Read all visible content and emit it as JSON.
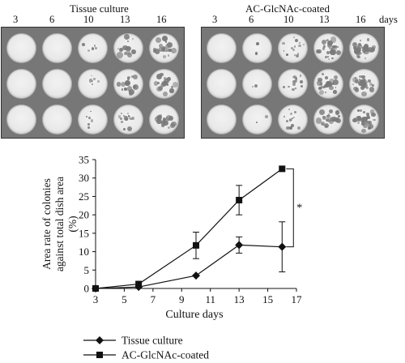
{
  "panels": [
    {
      "title": "Tissue culture",
      "days": [
        "3",
        "6",
        "10",
        "13",
        "16"
      ]
    },
    {
      "title": "AC-GlcNAc-coated",
      "days": [
        "3",
        "6",
        "10",
        "13",
        "16"
      ]
    }
  ],
  "days_label": "days",
  "chart_data": {
    "type": "line",
    "xlabel": "Culture days",
    "ylabel": "Area rate of colonies against total dish area (%)",
    "xlim": [
      3,
      17
    ],
    "ylim": [
      0,
      35
    ],
    "xticks": [
      "3",
      "5",
      "7",
      "9",
      "11",
      "13",
      "15",
      "17"
    ],
    "yticks": [
      "0",
      "5",
      "10",
      "15",
      "20",
      "25",
      "30",
      "35"
    ],
    "grid": false,
    "legend": "bottom",
    "series": [
      {
        "name": "Tissue culture",
        "marker": "diamond",
        "x": [
          3,
          6,
          10,
          13,
          16
        ],
        "y": [
          0,
          0.4,
          3.5,
          11.8,
          11.3
        ],
        "err": [
          0,
          0,
          0,
          2.2,
          6.8
        ]
      },
      {
        "name": "AC-GlcNAc-coated",
        "marker": "square",
        "x": [
          3,
          6,
          10,
          13,
          16
        ],
        "y": [
          0,
          1.2,
          11.7,
          24.0,
          32.5
        ],
        "err": [
          0,
          0,
          3.6,
          4.0,
          0
        ]
      }
    ],
    "annotations": [
      "*"
    ]
  }
}
